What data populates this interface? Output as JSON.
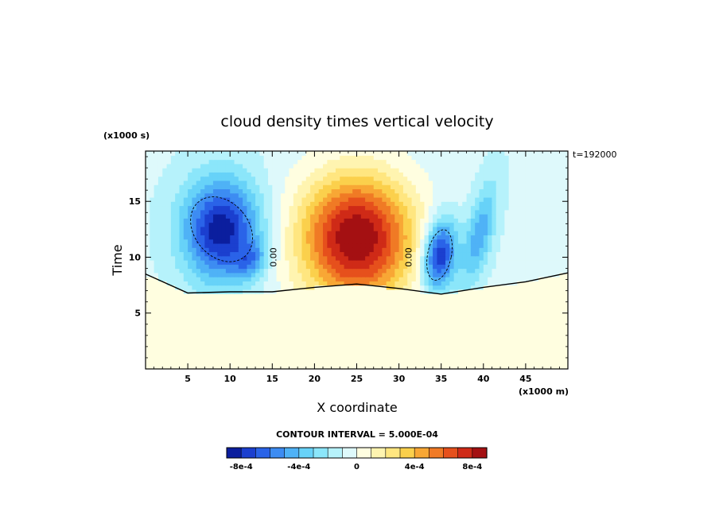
{
  "chart_data": {
    "type": "heatmap",
    "title": "cloud density times vertical velocity",
    "xlabel": "X coordinate",
    "ylabel": "Time",
    "x_units": "(x1000 m)",
    "y_units": "(x1000 s)",
    "time_label": "t=192000",
    "contour_interval_label": "CONTOUR INTERVAL = 5.000E-04",
    "xlim": [
      0,
      50
    ],
    "ylim": [
      0,
      19.5
    ],
    "x_ticks": [
      5,
      10,
      15,
      20,
      25,
      30,
      35,
      40,
      45
    ],
    "y_ticks": [
      5,
      10,
      15
    ],
    "contour_labels": [
      {
        "text": "0.00",
        "x": 15.5,
        "y": 10.0
      },
      {
        "text": "0.00",
        "x": 31.5,
        "y": 10.0
      }
    ],
    "colorbar": {
      "levels": [
        -0.0009,
        -0.0008,
        -0.0007,
        -0.0006,
        -0.0005,
        -0.0004,
        -0.0003,
        -0.0002,
        -0.0001,
        0,
        0.0001,
        0.0002,
        0.0003,
        0.0004,
        0.0005,
        0.0006,
        0.0007,
        0.0008,
        0.0009
      ],
      "colors": [
        "#0b1e9e",
        "#1b3fcf",
        "#2a63e8",
        "#3d8cf2",
        "#4fb2f6",
        "#67d2f8",
        "#8be6fa",
        "#b6f2fb",
        "#def9fb",
        "#fffee0",
        "#fff4b0",
        "#ffe680",
        "#fbd04c",
        "#f8a735",
        "#f07a25",
        "#e6501c",
        "#cf2a17",
        "#a41012"
      ],
      "tick_labels": [
        {
          "text": "-8e-4",
          "value": -0.0008
        },
        {
          "text": "-4e-4",
          "value": -0.0004
        },
        {
          "text": "0",
          "value": 0
        },
        {
          "text": "4e-4",
          "value": 0.0004
        },
        {
          "text": "8e-4",
          "value": 0.0008
        }
      ]
    },
    "features": [
      {
        "name": "cloud-base",
        "value": 0,
        "x": [
          0,
          5,
          10,
          15,
          20,
          25,
          30,
          35,
          40,
          45,
          50
        ],
        "y": [
          8.5,
          6.8,
          6.9,
          6.9,
          7.3,
          7.6,
          7.2,
          6.7,
          7.3,
          7.8,
          8.6
        ]
      },
      {
        "name": "downdraft-west",
        "peak": -0.0008,
        "x": 9.0,
        "y": 12.5
      },
      {
        "name": "downdraft-west-small",
        "peak": -0.0003,
        "x": 12.5,
        "y": 9.8
      },
      {
        "name": "updraft-center",
        "peak": 0.0009,
        "x": 25.0,
        "y": 11.5
      },
      {
        "name": "downdraft-east",
        "peak": -0.0008,
        "x": 34.8,
        "y": 10.2
      },
      {
        "name": "downdraft-east-upper",
        "peak": -0.0004,
        "x": 39.5,
        "y": 12.0
      }
    ]
  }
}
